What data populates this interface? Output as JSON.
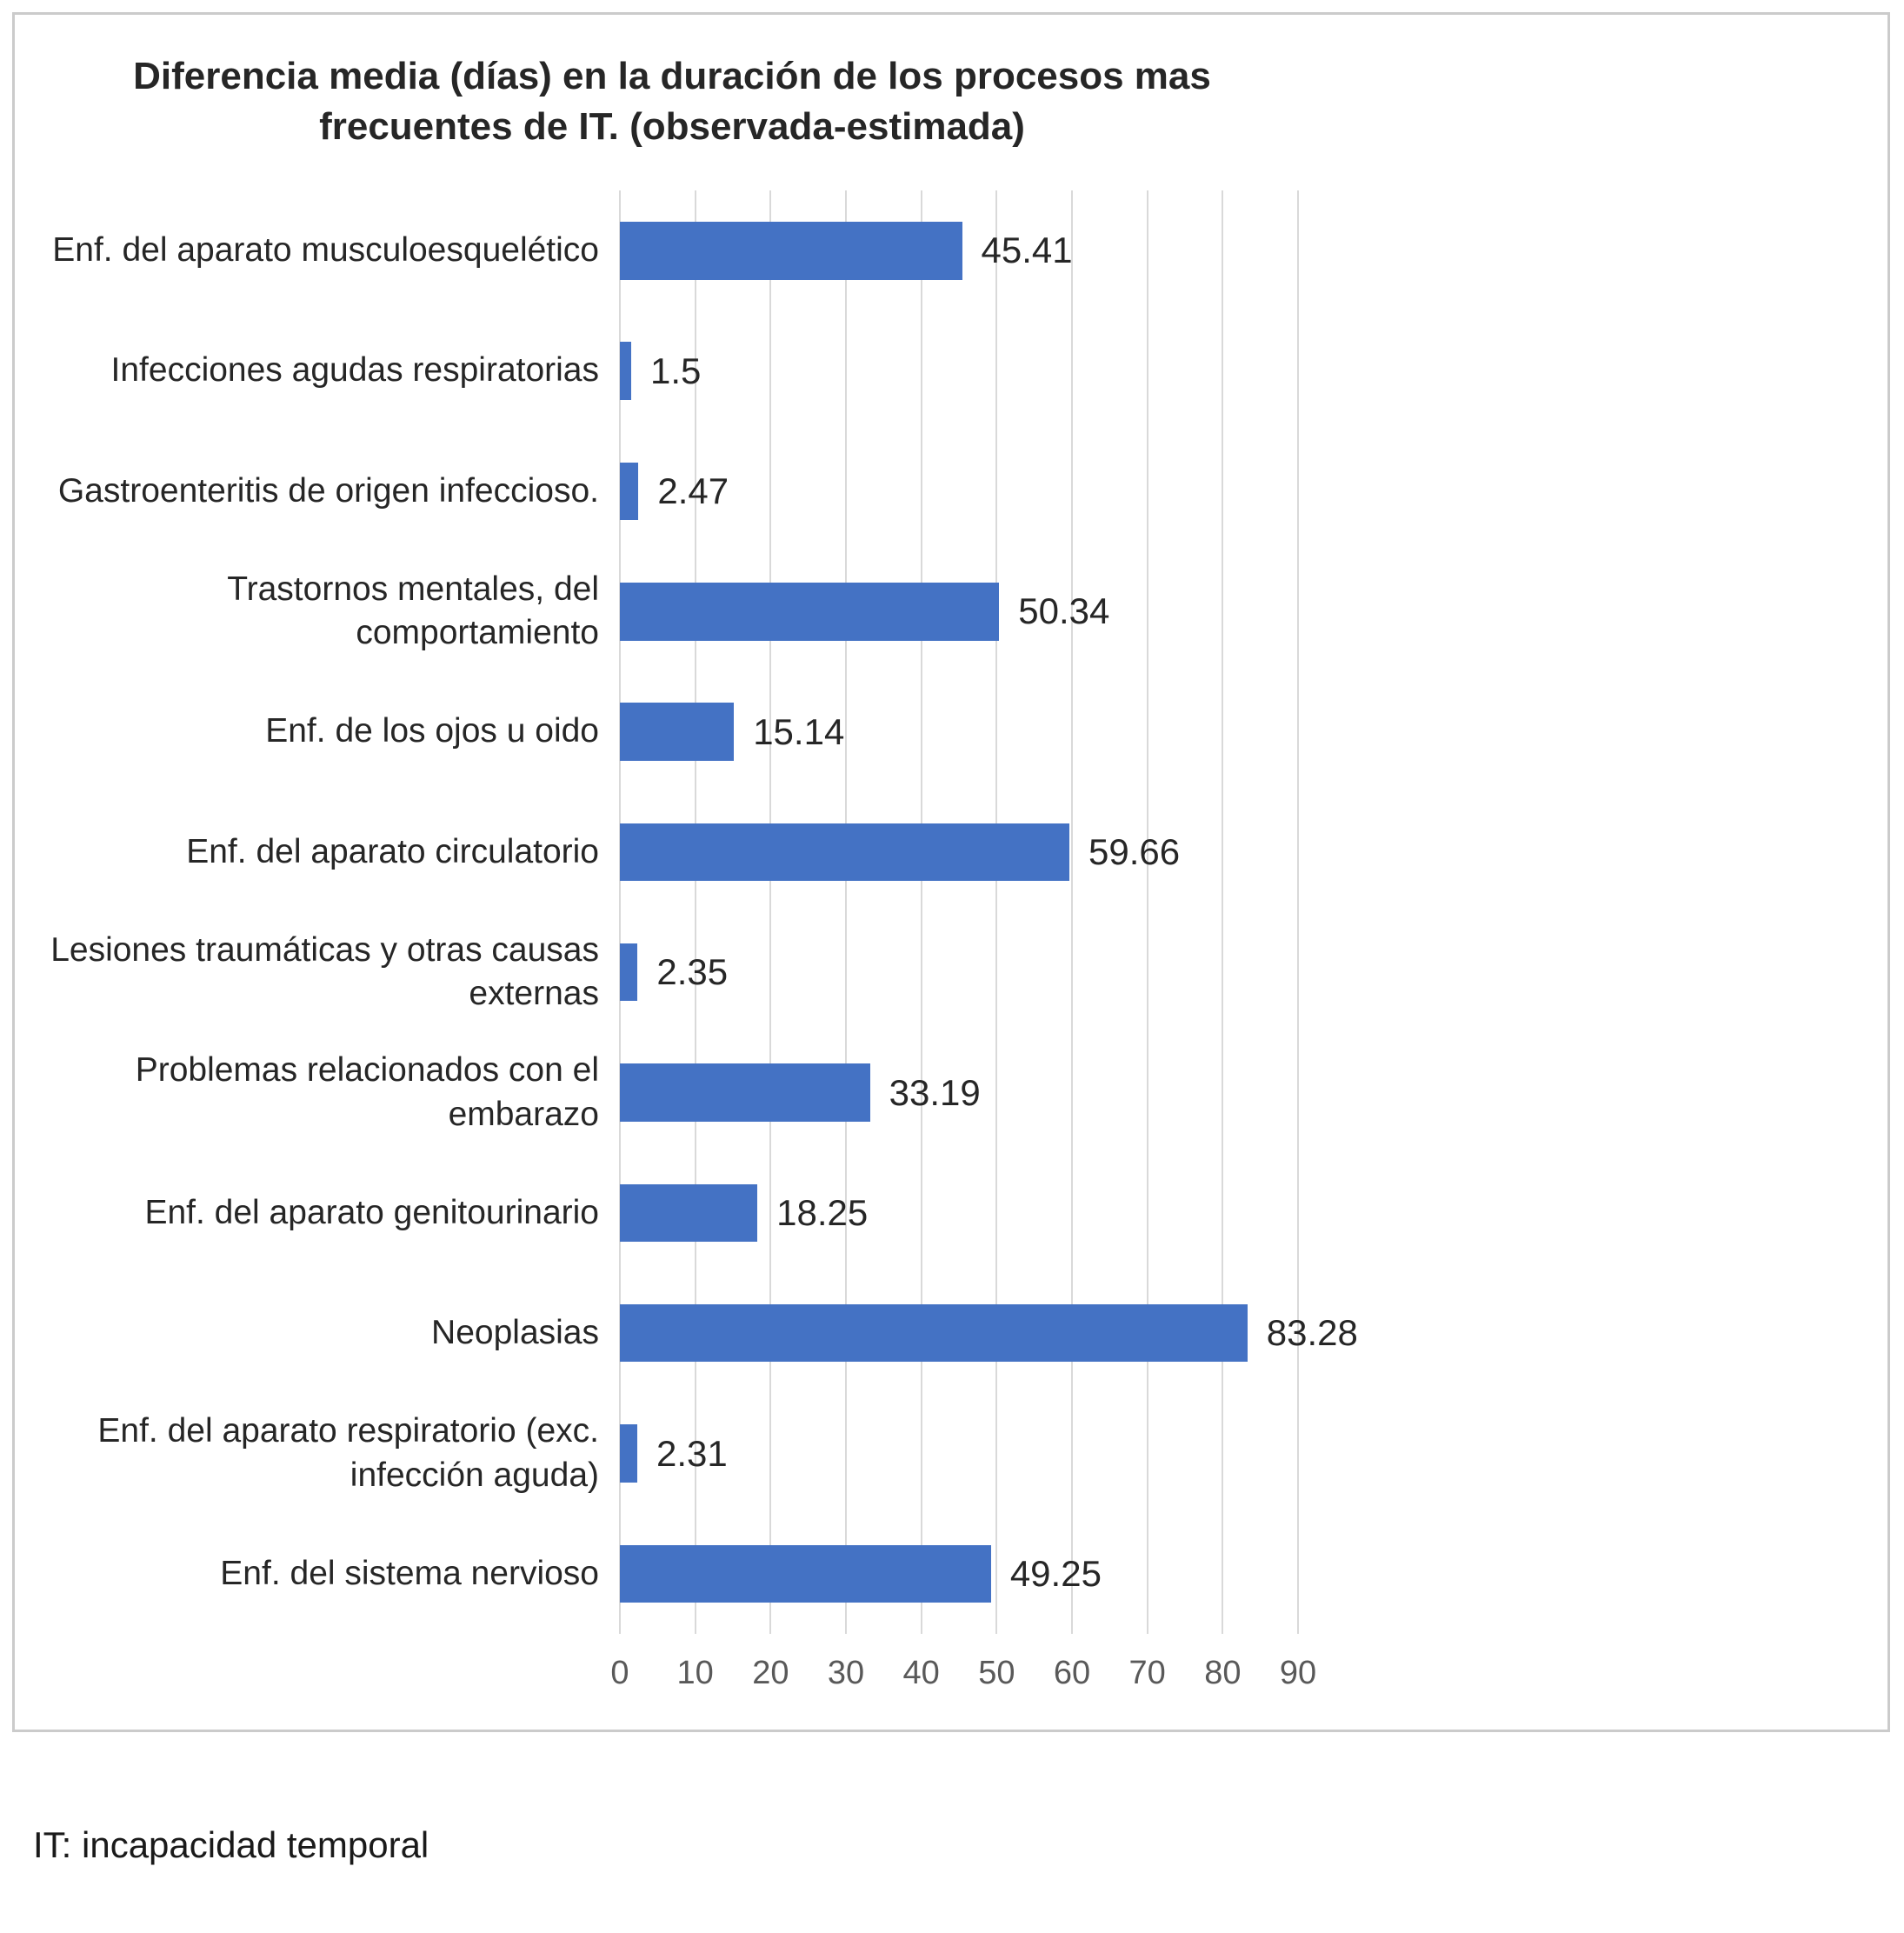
{
  "chart_data": {
    "type": "bar",
    "orientation": "horizontal",
    "title": "Diferencia media (días) en la duración de los procesos mas frecuentes  de IT. (observada-estimada)",
    "title_line1": "Diferencia media (días) en la duración de los procesos mas",
    "title_line2": "frecuentes  de IT. (observada-estimada)",
    "categories": [
      "Enf. del aparato musculoesquelético",
      "Infecciones agudas respiratorias",
      "Gastroenteritis de origen infeccioso.",
      "Trastornos mentales, del comportamiento",
      "Enf. de los  ojos u  oido",
      "Enf. del aparato circulatorio",
      "Lesiones traumáticas y otras causas externas",
      "Problemas relacionados con el embarazo",
      "Enf. del aparato genitourinario",
      "Neoplasias",
      "Enf. del aparato respiratorio (exc. infección aguda)",
      "Enf. del sistema nervioso"
    ],
    "values": [
      45.41,
      1.5,
      2.47,
      50.34,
      15.14,
      59.66,
      2.35,
      33.19,
      18.25,
      83.28,
      2.31,
      49.25
    ],
    "value_labels": [
      "45.41",
      "1.5",
      "2.47",
      "50.34",
      "15.14",
      "59.66",
      "2.35",
      "33.19",
      "18.25",
      "83.28",
      "2.31",
      "49.25"
    ],
    "xlabel": "",
    "ylabel": "",
    "xlim": [
      0,
      90
    ],
    "ticks": [
      0,
      10,
      20,
      30,
      40,
      50,
      60,
      70,
      80,
      90
    ],
    "grid": "vertical",
    "legend": "none",
    "bar_color": "#4472C4",
    "gridline_color": "#d9d9d9"
  },
  "footer": {
    "note": "IT: incapacidad temporal"
  }
}
